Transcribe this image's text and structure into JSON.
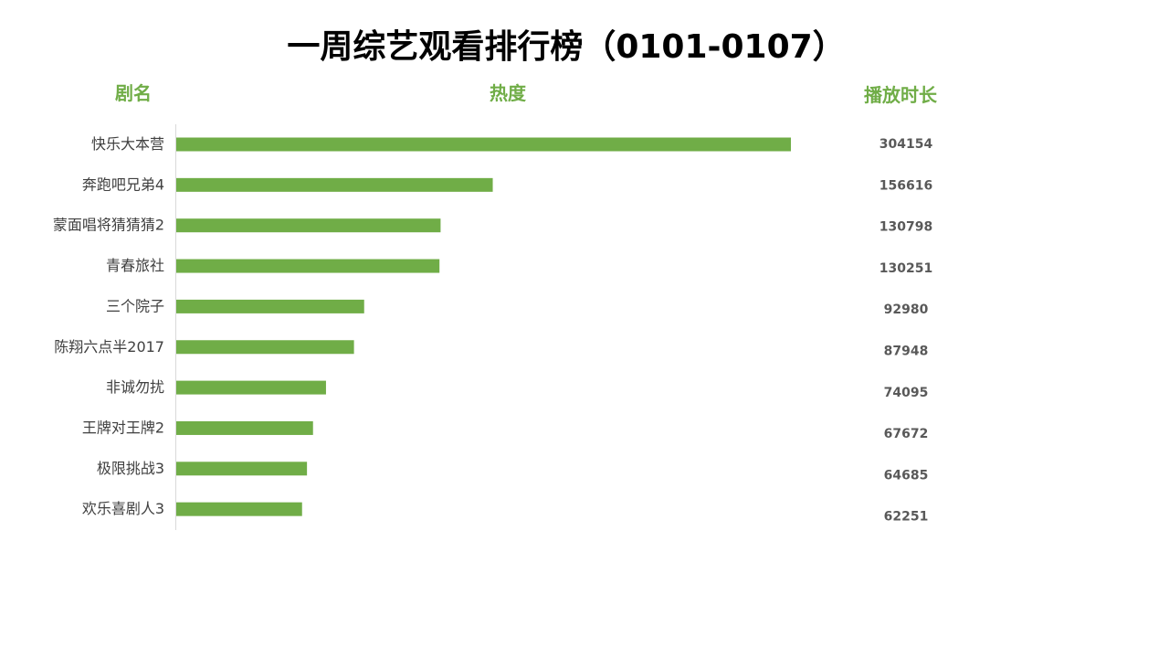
{
  "title": "一周综艺观看排行榜（0101-0107）",
  "headers": {
    "name": "剧名",
    "heat": "热度",
    "duration": "播放时长"
  },
  "colors": {
    "bar": "#70ad47",
    "header": "#70ad47",
    "axis": "#d9d9d9"
  },
  "chart_data": {
    "type": "bar",
    "orientation": "horizontal",
    "title": "一周综艺观看排行榜（0101-0107）",
    "categories": [
      "快乐大本营",
      "奔跑吧兄弟4",
      "蒙面唱将猜猜猜2",
      "青春旅社",
      "三个院子",
      "陈翔六点半2017",
      "非诚勿扰",
      "王牌对王牌2",
      "极限挑战3",
      "欢乐喜剧人3"
    ],
    "values": [
      304154,
      156616,
      130798,
      130251,
      92980,
      87948,
      74095,
      67672,
      64685,
      62251
    ],
    "xlim": [
      0,
      304154
    ],
    "grid": false,
    "legend": "none"
  }
}
